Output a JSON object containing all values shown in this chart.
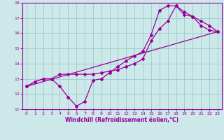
{
  "xlabel": "Windchill (Refroidissement éolien,°C)",
  "bg_color": "#cce8e8",
  "line_color": "#990099",
  "grid_color": "#99cccc",
  "xlim": [
    -0.5,
    23.5
  ],
  "ylim": [
    11,
    18
  ],
  "xticks": [
    0,
    1,
    2,
    3,
    4,
    5,
    6,
    7,
    8,
    9,
    10,
    11,
    12,
    13,
    14,
    15,
    16,
    17,
    18,
    19,
    20,
    21,
    22,
    23
  ],
  "yticks": [
    11,
    12,
    13,
    14,
    15,
    16,
    17,
    18
  ],
  "line1_x": [
    0,
    1,
    2,
    3,
    4,
    5,
    6,
    7,
    8,
    9,
    10,
    11,
    12,
    13,
    14,
    15,
    16,
    17,
    18,
    19,
    20,
    21,
    22,
    23
  ],
  "line1_y": [
    12.5,
    12.8,
    13.0,
    13.0,
    12.5,
    11.8,
    11.2,
    11.5,
    12.9,
    13.0,
    13.4,
    13.8,
    14.2,
    14.5,
    14.8,
    15.9,
    17.5,
    17.8,
    17.8,
    17.2,
    17.1,
    16.8,
    16.5,
    16.1
  ],
  "line2_x": [
    0,
    1,
    2,
    3,
    4,
    5,
    6,
    7,
    8,
    9,
    10,
    11,
    12,
    13,
    14,
    15,
    16,
    17,
    18,
    19,
    20,
    21,
    22,
    23
  ],
  "line2_y": [
    12.5,
    12.8,
    13.0,
    13.0,
    13.3,
    13.3,
    13.3,
    13.3,
    13.3,
    13.4,
    13.5,
    13.6,
    13.8,
    14.0,
    14.3,
    15.5,
    16.3,
    16.8,
    17.8,
    17.4,
    17.1,
    16.5,
    16.2,
    16.1
  ],
  "line3_x": [
    0,
    23
  ],
  "line3_y": [
    12.5,
    16.1
  ],
  "marker_size": 2.0,
  "line_width": 0.9,
  "tick_fontsize": 4.5,
  "xlabel_fontsize": 5.5
}
